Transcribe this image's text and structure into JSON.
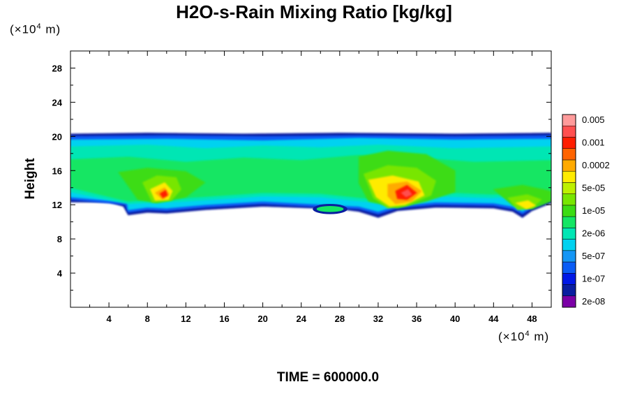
{
  "chart_data": {
    "type": "heatmap",
    "title": "H2O-s-Rain Mixing Ratio [kg/kg]",
    "time_label": "TIME = 600000.0",
    "ylabel": "Height",
    "unit_y_prefix": "(×10",
    "unit_y_exp": "4",
    "unit_y_suffix": " m)",
    "unit_x_prefix": "(×10",
    "unit_x_exp": "4",
    "unit_x_suffix": " m)",
    "xlim": [
      0,
      50
    ],
    "ylim": [
      0,
      30
    ],
    "x_ticks": [
      "4",
      "8",
      "12",
      "16",
      "20",
      "24",
      "28",
      "32",
      "36",
      "40",
      "44",
      "48"
    ],
    "x_tick_values": [
      4,
      8,
      12,
      16,
      20,
      24,
      28,
      32,
      36,
      40,
      44,
      48
    ],
    "y_ticks": [
      "4",
      "8",
      "12",
      "16",
      "20",
      "24",
      "28"
    ],
    "y_tick_values": [
      4,
      8,
      12,
      16,
      20,
      24,
      28
    ],
    "colorbar": {
      "colors": [
        "#7b00a6",
        "#0a1ea0",
        "#0018e6",
        "#0a5cf5",
        "#1496f5",
        "#00d2f0",
        "#00e6b4",
        "#14e664",
        "#3cdc14",
        "#78e600",
        "#bef000",
        "#ffeb00",
        "#ffaa00",
        "#ff6400",
        "#ff1e00",
        "#ff5050",
        "#ff9b9b"
      ],
      "labels": [
        "2e-08",
        "1e-07",
        "5e-07",
        "2e-06",
        "1e-05",
        "5e-05",
        "0.0002",
        "0.001",
        "0.005"
      ]
    },
    "field_description": {
      "rain_layer_height_range": [
        11,
        20.5
      ],
      "local_maxima": [
        {
          "x": 10,
          "y": 13.5,
          "level": "0.001"
        },
        {
          "x": 35,
          "y": 13,
          "level": "0.005"
        },
        {
          "x": 47.5,
          "y": 11.8,
          "level": "0.0002"
        }
      ],
      "isolated_cell": {
        "x": 27,
        "y": 11.5
      }
    }
  }
}
